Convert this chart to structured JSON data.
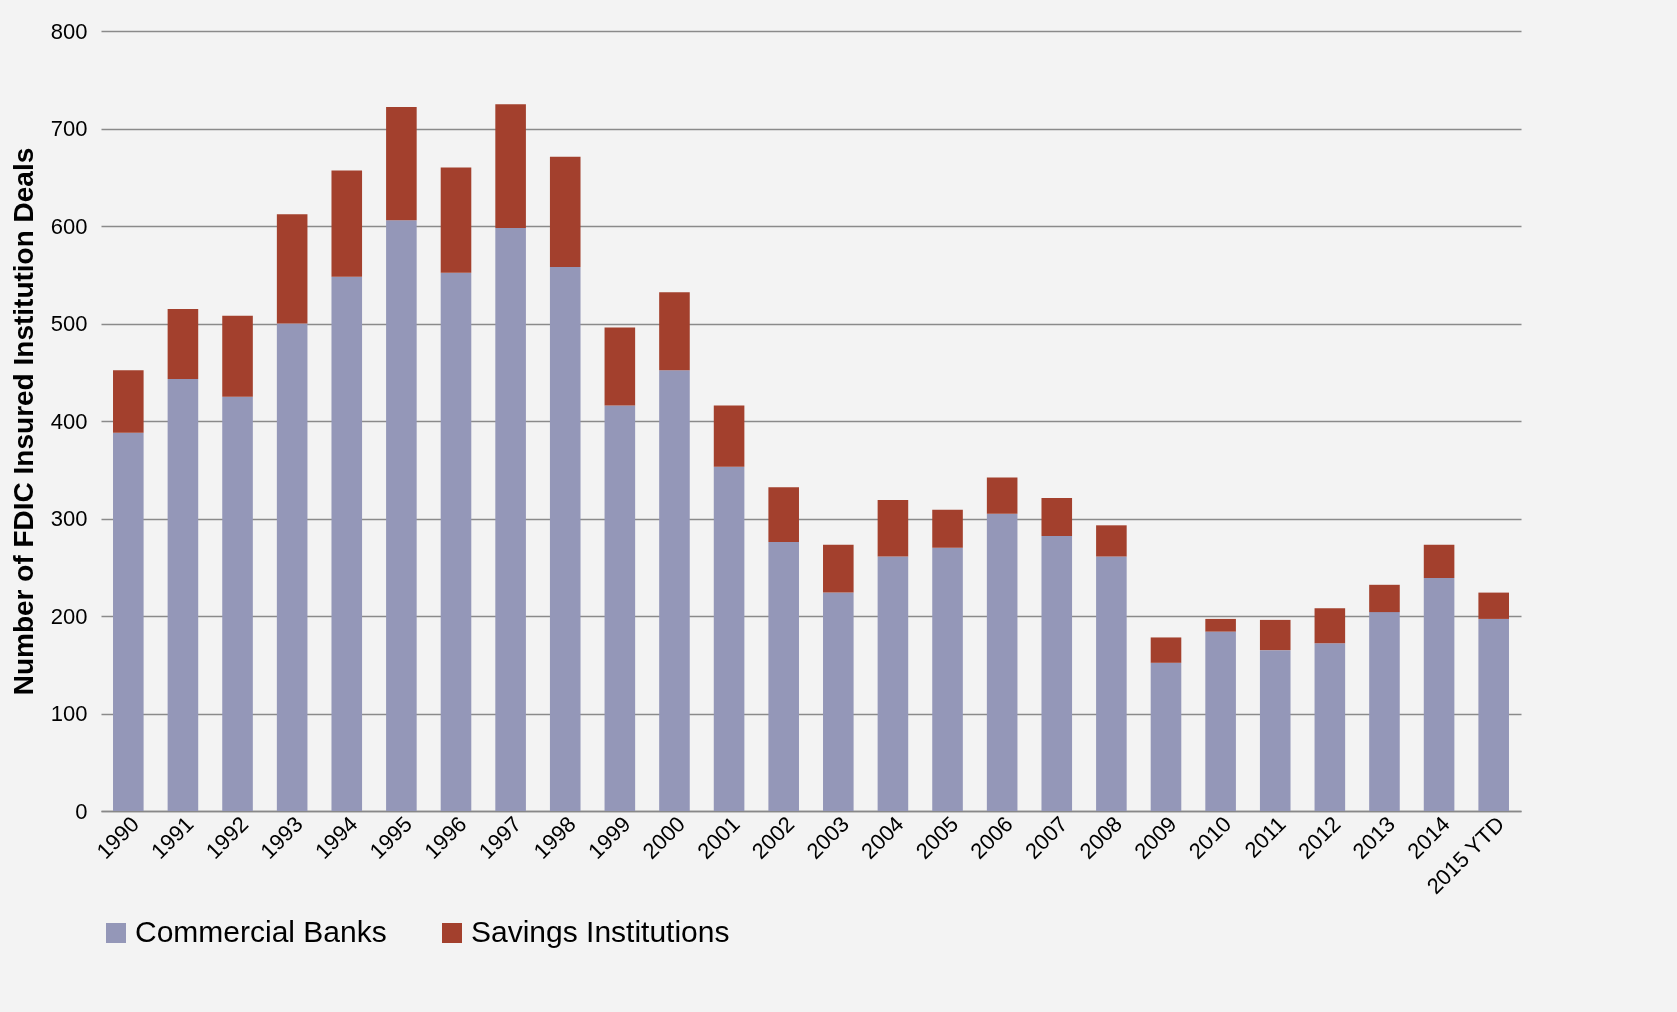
{
  "chart_data": {
    "type": "bar",
    "ylabel": "Number of FDIC Insured Institution Deals",
    "stacked": true,
    "grid": "y",
    "legend": "bottom",
    "categories": [
      "1990",
      "1991",
      "1992",
      "1993",
      "1994",
      "1995",
      "1996",
      "1997",
      "1998",
      "1999",
      "2000",
      "2001",
      "2002",
      "2003",
      "2004",
      "2005",
      "2006",
      "2007",
      "2008",
      "2009",
      "2010",
      "2011",
      "2012",
      "2013",
      "2014",
      "2015 YTD"
    ],
    "ylim": [
      0,
      800
    ],
    "yticks": [
      0,
      100,
      200,
      300,
      400,
      500,
      600,
      700,
      800
    ],
    "series": [
      {
        "name": "Commercial Banks",
        "color": "#9497b8",
        "values": [
          388,
          443,
          425,
          500,
          548,
          606,
          552,
          598,
          558,
          416,
          452,
          353,
          276,
          224,
          261,
          270,
          305,
          282,
          261,
          152,
          184,
          165,
          172,
          204,
          239,
          197
        ]
      },
      {
        "name": "Savings Institutions",
        "color": "#a3402d",
        "values": [
          64,
          72,
          83,
          112,
          109,
          116,
          108,
          127,
          113,
          80,
          80,
          63,
          56,
          49,
          58,
          39,
          37,
          39,
          32,
          26,
          13,
          31,
          36,
          28,
          34,
          27
        ]
      }
    ]
  }
}
